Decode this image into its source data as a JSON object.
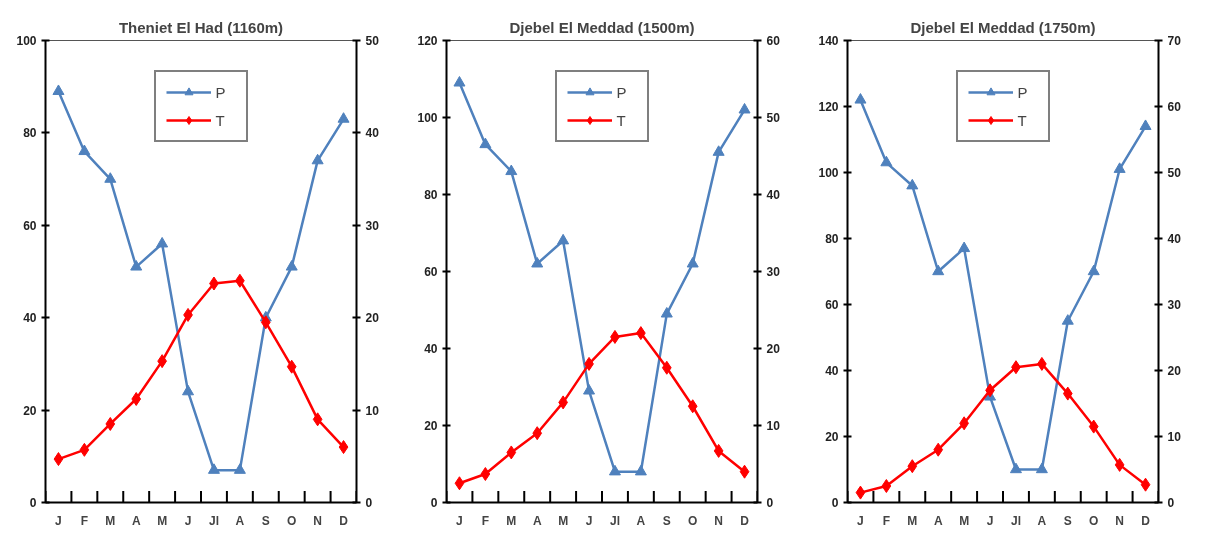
{
  "chart_data": [
    {
      "type": "line",
      "title": "Theniet El Had (1160m)",
      "categories": [
        "J",
        "F",
        "M",
        "A",
        "M",
        "J",
        "Jl",
        "A",
        "S",
        "O",
        "N",
        "D"
      ],
      "series": [
        {
          "name": "P",
          "color": "#4f81bd",
          "marker": "triangle",
          "values": [
            89,
            76,
            70,
            51,
            56,
            24,
            7,
            7,
            40,
            51,
            74,
            83
          ]
        },
        {
          "name": "T",
          "color": "#ff0000",
          "marker": "diamond",
          "axis": "y2",
          "values": [
            4.7,
            5.7,
            8.5,
            11.2,
            15.3,
            20.3,
            23.7,
            24,
            19.5,
            14.7,
            9,
            6
          ]
        }
      ],
      "ylim": [
        0,
        100
      ],
      "yticks": [
        0,
        20,
        40,
        60,
        80,
        100
      ],
      "y2lim": [
        0,
        50
      ],
      "y2ticks": [
        0,
        10,
        20,
        30,
        40,
        50
      ],
      "grid": false,
      "legend": "top"
    },
    {
      "type": "line",
      "title": "Djebel El Meddad (1500m)",
      "categories": [
        "J",
        "F",
        "M",
        "A",
        "M",
        "J",
        "Jl",
        "A",
        "S",
        "O",
        "N",
        "D"
      ],
      "series": [
        {
          "name": "P",
          "color": "#4f81bd",
          "marker": "triangle",
          "values": [
            109,
            93,
            86,
            62,
            68,
            29,
            8,
            8,
            49,
            62,
            91,
            102
          ]
        },
        {
          "name": "T",
          "color": "#ff0000",
          "marker": "diamond",
          "axis": "y2",
          "values": [
            2.5,
            3.7,
            6.5,
            9,
            13,
            18,
            21.5,
            22,
            17.5,
            12.5,
            6.7,
            4
          ]
        }
      ],
      "ylim": [
        0,
        120
      ],
      "yticks": [
        0,
        20,
        40,
        60,
        80,
        100,
        120
      ],
      "y2lim": [
        0,
        60
      ],
      "y2ticks": [
        0,
        10,
        20,
        30,
        40,
        50,
        60
      ],
      "grid": false,
      "legend": "top"
    },
    {
      "type": "line",
      "title": "Djebel El Meddad (1750m)",
      "categories": [
        "J",
        "F",
        "M",
        "A",
        "M",
        "J",
        "Jl",
        "A",
        "S",
        "O",
        "N",
        "D"
      ],
      "series": [
        {
          "name": "P",
          "color": "#4f81bd",
          "marker": "triangle",
          "values": [
            122,
            103,
            96,
            70,
            77,
            32,
            10,
            10,
            55,
            70,
            101,
            114
          ]
        },
        {
          "name": "T",
          "color": "#ff0000",
          "marker": "diamond",
          "axis": "y2",
          "values": [
            1.5,
            2.5,
            5.5,
            8,
            12,
            17,
            20.5,
            21,
            16.5,
            11.5,
            5.7,
            2.7
          ]
        }
      ],
      "ylim": [
        0,
        140
      ],
      "yticks": [
        0,
        20,
        40,
        60,
        80,
        100,
        120,
        140
      ],
      "y2lim": [
        0,
        70
      ],
      "y2ticks": [
        0,
        10,
        20,
        30,
        40,
        50,
        60,
        70
      ],
      "grid": false,
      "legend": "top"
    }
  ]
}
